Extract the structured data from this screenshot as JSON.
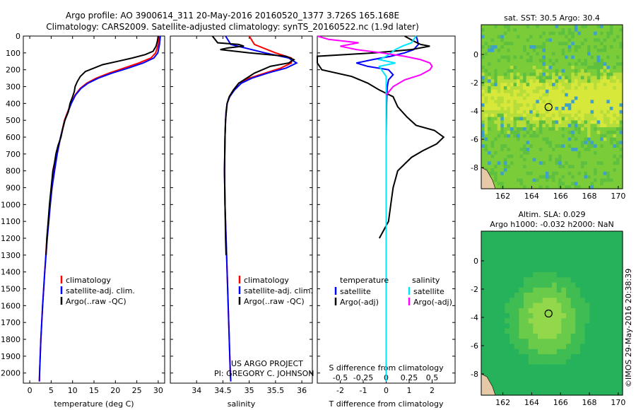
{
  "header": {
    "line1": "Argo profile: AO 3900614_311 20-May-2016 20160520_1377 3.726S 165.168E",
    "line2": "Climatology: CARS2009. Satellite-adjusted climatology: synTS_20160522.nc (1.9d later)"
  },
  "credits": {
    "project": "US ARGO PROJECT",
    "pi": "PI: GREGORY C. JOHNSON",
    "stamp": "©IMOS 29-May-2016 20:38:39"
  },
  "colors": {
    "climatology": "#ff0000",
    "satellite": "#0000ff",
    "argo": "#000000",
    "salinity_satellite": "#00e5ff",
    "salinity_argo": "#ff00ff"
  },
  "chart_data": [
    {
      "type": "line",
      "panel": "temperature",
      "xlabel": "temperature (deg C)",
      "ylabel": "",
      "xlim": [
        -1.5,
        31.5
      ],
      "ylim": [
        2060,
        0
      ],
      "xticks": [
        0,
        5,
        10,
        15,
        20,
        25,
        30
      ],
      "yticks": [
        0,
        100,
        200,
        300,
        400,
        500,
        600,
        700,
        800,
        900,
        1000,
        1100,
        1200,
        1300,
        1400,
        1500,
        1600,
        1700,
        1800,
        1900,
        2000
      ],
      "legend": [
        "climatology",
        "satellite-adj. clim.",
        "Argo(..raw -QC)"
      ],
      "series": [
        {
          "name": "climatology",
          "color": "#ff0000",
          "depth": [
            0,
            50,
            100,
            130,
            160,
            190,
            220,
            250,
            280,
            310,
            350,
            400,
            500,
            600,
            700,
            800,
            900,
            1000,
            1200,
            1400,
            1600,
            1800,
            2000,
            2050
          ],
          "values": [
            30.3,
            30.0,
            29.4,
            28.3,
            25.5,
            22.0,
            18.5,
            15.5,
            13.3,
            11.8,
            10.6,
            9.6,
            8.1,
            7.2,
            6.4,
            5.7,
            5.2,
            4.7,
            4.0,
            3.5,
            3.0,
            2.6,
            2.3,
            2.25
          ]
        },
        {
          "name": "satellite-adj. clim.",
          "color": "#0000ff",
          "depth": [
            0,
            50,
            100,
            130,
            160,
            190,
            220,
            250,
            280,
            310,
            350,
            400,
            500,
            600,
            700,
            800,
            900,
            1000,
            1200,
            1400,
            1600,
            1800,
            2000,
            2050
          ],
          "values": [
            30.5,
            30.3,
            29.9,
            29.0,
            26.5,
            23.0,
            19.2,
            16.0,
            13.6,
            12.0,
            10.7,
            9.7,
            8.2,
            7.2,
            6.4,
            5.8,
            5.2,
            4.8,
            4.1,
            3.5,
            3.0,
            2.6,
            2.3,
            2.25
          ]
        },
        {
          "name": "Argo(..raw -QC)",
          "color": "#000000",
          "depth": [
            0,
            30,
            60,
            90,
            110,
            130,
            150,
            170,
            190,
            210,
            240,
            270,
            300,
            330,
            360,
            400,
            450,
            500,
            550,
            600,
            650,
            700,
            750,
            800,
            900,
            1000,
            1100,
            1200,
            1300
          ],
          "values": [
            30.0,
            29.8,
            29.5,
            28.8,
            27.0,
            24.0,
            20.5,
            17.0,
            15.0,
            13.0,
            11.8,
            11.1,
            10.6,
            10.4,
            10.0,
            9.4,
            9.0,
            8.2,
            7.7,
            7.3,
            6.6,
            6.1,
            5.8,
            5.4,
            5.0,
            4.6,
            4.3,
            4.0,
            3.8
          ]
        }
      ]
    },
    {
      "type": "line",
      "panel": "salinity",
      "xlabel": "salinity",
      "ylabel": "",
      "xlim": [
        33.5,
        36.2
      ],
      "ylim": [
        2060,
        0
      ],
      "xticks": [
        34,
        34.5,
        35,
        35.5,
        36
      ],
      "legend": [
        "climatology",
        "satellite-adj. clim.",
        "Argo(..raw -QC)"
      ],
      "series": [
        {
          "name": "climatology",
          "color": "#ff0000",
          "depth": [
            0,
            50,
            100,
            130,
            160,
            190,
            220,
            250,
            280,
            320,
            360,
            400,
            450,
            500,
            600,
            800,
            1000,
            1200,
            1400,
            1600,
            1800,
            2000,
            2050
          ],
          "values": [
            35.0,
            35.1,
            35.5,
            35.8,
            35.8,
            35.6,
            35.3,
            35.0,
            34.8,
            34.7,
            34.62,
            34.58,
            34.56,
            34.55,
            34.54,
            34.53,
            34.54,
            34.56,
            34.58,
            34.6,
            34.62,
            34.64,
            34.65
          ]
        },
        {
          "name": "satellite-adj. clim.",
          "color": "#0000ff",
          "depth": [
            0,
            50,
            100,
            130,
            160,
            190,
            220,
            250,
            280,
            320,
            360,
            400,
            450,
            500,
            600,
            800,
            1000,
            1200,
            1400,
            1600,
            1800,
            2000,
            2050
          ],
          "values": [
            34.55,
            34.65,
            35.3,
            35.75,
            35.9,
            35.7,
            35.35,
            35.05,
            34.85,
            34.72,
            34.63,
            34.58,
            34.56,
            34.55,
            34.54,
            34.53,
            34.54,
            34.56,
            34.58,
            34.6,
            34.62,
            34.64,
            34.65
          ]
        },
        {
          "name": "Argo(..raw -QC)",
          "color": "#000000",
          "depth": [
            0,
            40,
            50,
            60,
            70,
            80,
            100,
            120,
            140,
            160,
            180,
            200,
            220,
            250,
            280,
            320,
            360,
            400,
            500,
            600,
            800,
            1000,
            1200,
            1300
          ],
          "values": [
            34.3,
            34.4,
            34.8,
            34.9,
            34.6,
            34.45,
            35.0,
            35.7,
            35.85,
            35.75,
            35.4,
            35.25,
            35.1,
            34.95,
            34.8,
            34.7,
            34.62,
            34.58,
            34.55,
            34.54,
            34.53,
            34.54,
            34.55,
            34.56
          ]
        }
      ]
    },
    {
      "type": "line",
      "panel": "difference",
      "xlabel": "T difference from climatology",
      "x2label": "S difference from climatology",
      "xlim": [
        -3,
        3
      ],
      "ylim": [
        2060,
        0
      ],
      "xticks": [
        -2,
        -1,
        0,
        1,
        2
      ],
      "x2ticks": [
        "-0.5",
        "-0.25",
        "0",
        "0.25",
        "0.5"
      ],
      "legend_groups": [
        "temperature",
        "salinity"
      ],
      "legend": [
        "satellite",
        "Argo(-adj)",
        "satellite",
        "Argo(-adj)"
      ],
      "series": [
        {
          "name": "satellite",
          "group": "temperature",
          "color": "#0000ff",
          "depth": [
            0,
            20,
            50,
            80,
            100,
            120,
            140,
            160,
            180,
            200,
            230,
            260,
            300,
            400,
            600,
            1000,
            1500,
            2050
          ],
          "values": [
            1.3,
            1.35,
            1.4,
            1.2,
            0.8,
            0.2,
            -0.6,
            -1.3,
            -0.8,
            0.1,
            0.3,
            0.1,
            0.05,
            0.02,
            0.0,
            0.0,
            0.0,
            0.0
          ]
        },
        {
          "name": "Argo(-adj)",
          "group": "temperature",
          "color": "#000000",
          "depth": [
            0,
            30,
            50,
            60,
            80,
            100,
            120,
            140,
            160,
            200,
            240,
            280,
            320,
            360,
            420,
            480,
            530,
            560,
            600,
            640,
            680,
            720,
            760,
            800,
            900,
            1000,
            1100,
            1150,
            1200
          ],
          "values": [
            0.8,
            1.2,
            1.5,
            1.9,
            1.1,
            -0.5,
            -3.0,
            -3.0,
            -3.0,
            -2.8,
            -1.5,
            -0.8,
            -0.3,
            0.3,
            0.5,
            0.9,
            1.3,
            2.1,
            2.5,
            2.2,
            1.6,
            1.1,
            0.8,
            0.5,
            0.3,
            0.2,
            0.1,
            -0.1,
            -0.3
          ]
        },
        {
          "name": "satellite",
          "group": "salinity",
          "color": "#00e5ff",
          "depth": [
            0,
            40,
            60,
            80,
            100,
            120,
            140,
            160,
            180,
            200,
            240,
            300,
            400,
            600,
            1000,
            1500,
            2050
          ],
          "values": [
            1.3,
            1.1,
            0.7,
            0.4,
            0.2,
            0.0,
            -0.3,
            0.4,
            -0.3,
            -0.2,
            0.0,
            0.0,
            0.0,
            0.0,
            0.0,
            0.0,
            0.0
          ]
        },
        {
          "name": "Argo(-adj)",
          "group": "salinity",
          "color": "#ff00ff",
          "depth": [
            0,
            20,
            40,
            60,
            80,
            100,
            120,
            140,
            160,
            180,
            200,
            230,
            260,
            300,
            350
          ],
          "values": [
            -3.0,
            -2.5,
            -1.2,
            -2.0,
            -1.3,
            -0.2,
            0.8,
            1.5,
            1.9,
            2.0,
            1.9,
            1.5,
            0.8,
            0.3,
            0.0
          ]
        }
      ]
    },
    {
      "type": "heatmap",
      "panel": "sst-map",
      "title": "sat. SST: 30.5  Argo: 30.4",
      "xlim": [
        160.5,
        170.3
      ],
      "ylim": [
        -9.5,
        2.1
      ],
      "xticks": [
        162,
        164,
        166,
        168,
        170
      ],
      "yticks": [
        0,
        -2,
        -4,
        -6,
        -8
      ],
      "marker": {
        "lon": 165.168,
        "lat": -3.726
      }
    },
    {
      "type": "heatmap",
      "panel": "sla-map",
      "title": "Altim. SLA: 0.029",
      "subtitle": "Argo h1000: -0.032 h2000: NaN",
      "xlim": [
        160.5,
        170.3
      ],
      "ylim": [
        -9.5,
        2.1
      ],
      "xticks": [
        162,
        164,
        166,
        168,
        170
      ],
      "yticks": [
        0,
        -2,
        -4,
        -6,
        -8
      ],
      "marker": {
        "lon": 165.168,
        "lat": -3.726
      }
    }
  ]
}
